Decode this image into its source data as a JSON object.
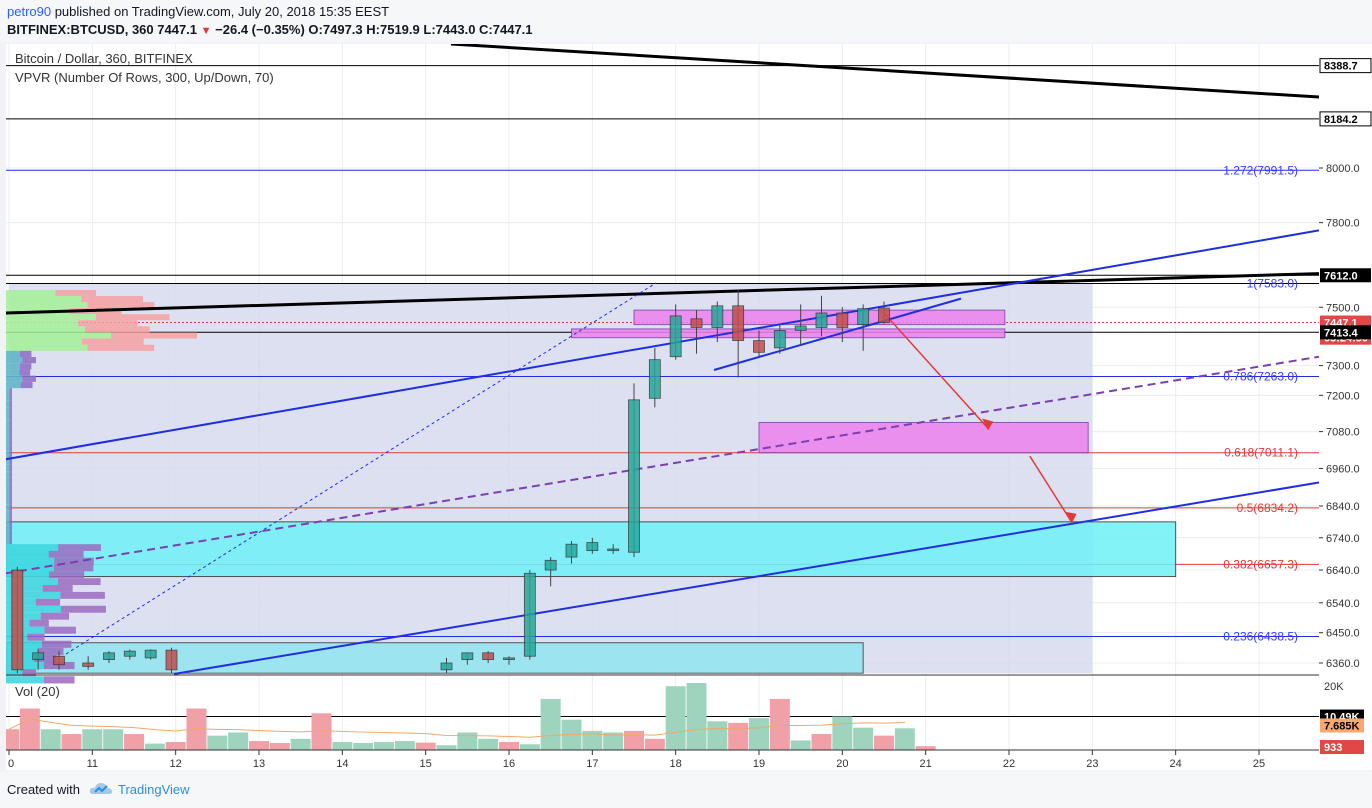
{
  "header": {
    "publisher_user": "petro90",
    "publisher_rest": " published on TradingView.com, July 20, 2018 15:35 EEST",
    "symbol": "BITFINEX:BTCUSD, 360",
    "last": "7447.1",
    "change": "−26.4 (−0.35%)",
    "open_label": "O:",
    "open": "7497.3",
    "high_label": "H:",
    "high": "7519.9",
    "low_label": "L:",
    "low": "7443.0",
    "close_label": "C:",
    "close": "7447.1"
  },
  "legend": {
    "title": "Bitcoin / Dollar, 360, BITFINEX",
    "indicator": "VPVR (Number Of Rows, 300, Up/Down, 70)",
    "vol_label": "Vol (20)"
  },
  "footer": {
    "created_with": "Created with",
    "brand": "TradingView"
  },
  "colors": {
    "up": "#26a69a",
    "down": "#c0504d",
    "up_vol": "#9ed4bd",
    "down_vol": "#f0a0a6",
    "fib_text": "#3a3aff",
    "fib_red": "#e03a3a",
    "magenta_box": "#ee82ee",
    "cyan_box": "#6ff1f7",
    "trend_blue": "#1f2ee0",
    "trend_purple": "#7b3fb0"
  },
  "chart_data": {
    "type": "candlestick",
    "x_axis": {
      "ticks": [
        "0",
        "11",
        "12",
        "13",
        "14",
        "15",
        "16",
        "17",
        "18",
        "19",
        "20",
        "21",
        "22",
        "23",
        "24",
        "25"
      ]
    },
    "y_axis": {
      "scale": "log",
      "range": [
        6330,
        8500
      ],
      "ticks": [
        "8000.0",
        "7800.0",
        "7500.0",
        "7300.0",
        "7200.0",
        "7080.0",
        "6960.0",
        "6840.0",
        "6740.0",
        "6640.0",
        "6540.0",
        "6450.0",
        "6360.0"
      ],
      "price_labels": [
        {
          "text": "8388.7",
          "value": 8388.7,
          "style": "outline"
        },
        {
          "text": "8184.2",
          "value": 8184.2,
          "style": "outline"
        },
        {
          "text": "7612.0",
          "value": 7612.0,
          "style": "black"
        },
        {
          "text": "7447.1",
          "value": 7447.1,
          "style": "red"
        },
        {
          "text": "05:24:50",
          "value": 7395,
          "style": "red"
        },
        {
          "text": "7413.4",
          "value": 7413.4,
          "style": "black"
        }
      ]
    },
    "fib_levels": [
      {
        "label": "1.272(7991.5)",
        "value": 7991.5,
        "line": "blue"
      },
      {
        "label": "1(7583.0)",
        "value": 7583.0,
        "line": "black"
      },
      {
        "label": "0.786(7263.0)",
        "value": 7263.0,
        "line": "blue"
      },
      {
        "label": "0.618(7011.1)",
        "value": 7011.1,
        "line": "red"
      },
      {
        "label": "0.5(6834.2)",
        "value": 6834.2,
        "line": "red"
      },
      {
        "label": "0.382(6657.3)",
        "value": 6657.3,
        "line": "red"
      },
      {
        "label": "0.236(6438.5)",
        "value": 6438.5,
        "line": "blue"
      }
    ],
    "candles": [
      {
        "t": 10.1,
        "o": 6640,
        "h": 6650,
        "l": 6330,
        "c": 6340
      },
      {
        "t": 10.35,
        "o": 6370,
        "h": 6400,
        "l": 6340,
        "c": 6390
      },
      {
        "t": 10.6,
        "o": 6380,
        "h": 6395,
        "l": 6340,
        "c": 6355
      },
      {
        "t": 10.95,
        "o": 6360,
        "h": 6380,
        "l": 6340,
        "c": 6350
      },
      {
        "t": 11.2,
        "o": 6370,
        "h": 6395,
        "l": 6360,
        "c": 6390
      },
      {
        "t": 11.45,
        "o": 6380,
        "h": 6400,
        "l": 6370,
        "c": 6395
      },
      {
        "t": 11.7,
        "o": 6375,
        "h": 6400,
        "l": 6370,
        "c": 6398
      },
      {
        "t": 11.95,
        "o": 6398,
        "h": 6405,
        "l": 6330,
        "c": 6340
      },
      {
        "t": 15.25,
        "o": 6340,
        "h": 6375,
        "l": 6330,
        "c": 6360
      },
      {
        "t": 15.5,
        "o": 6370,
        "h": 6390,
        "l": 6355,
        "c": 6390
      },
      {
        "t": 15.75,
        "o": 6390,
        "h": 6395,
        "l": 6360,
        "c": 6370
      },
      {
        "t": 16.0,
        "o": 6370,
        "h": 6380,
        "l": 6355,
        "c": 6375
      },
      {
        "t": 16.25,
        "o": 6380,
        "h": 6640,
        "l": 6370,
        "c": 6630
      },
      {
        "t": 16.5,
        "o": 6640,
        "h": 6680,
        "l": 6590,
        "c": 6670
      },
      {
        "t": 16.75,
        "o": 6680,
        "h": 6730,
        "l": 6660,
        "c": 6720
      },
      {
        "t": 17.0,
        "o": 6700,
        "h": 6740,
        "l": 6690,
        "c": 6725
      },
      {
        "t": 17.25,
        "o": 6700,
        "h": 6720,
        "l": 6690,
        "c": 6705
      },
      {
        "t": 17.5,
        "o": 6695,
        "h": 7240,
        "l": 6680,
        "c": 7185
      },
      {
        "t": 17.75,
        "o": 7190,
        "h": 7360,
        "l": 7160,
        "c": 7320
      },
      {
        "t": 18.0,
        "o": 7330,
        "h": 7510,
        "l": 7320,
        "c": 7470
      },
      {
        "t": 18.25,
        "o": 7460,
        "h": 7490,
        "l": 7340,
        "c": 7430
      },
      {
        "t": 18.5,
        "o": 7430,
        "h": 7520,
        "l": 7380,
        "c": 7505
      },
      {
        "t": 18.75,
        "o": 7505,
        "h": 7560,
        "l": 7260,
        "c": 7385
      },
      {
        "t": 19.0,
        "o": 7385,
        "h": 7420,
        "l": 7330,
        "c": 7345
      },
      {
        "t": 19.25,
        "o": 7360,
        "h": 7440,
        "l": 7340,
        "c": 7420
      },
      {
        "t": 19.5,
        "o": 7420,
        "h": 7510,
        "l": 7370,
        "c": 7435
      },
      {
        "t": 19.75,
        "o": 7430,
        "h": 7540,
        "l": 7400,
        "c": 7480
      },
      {
        "t": 20.0,
        "o": 7480,
        "h": 7500,
        "l": 7380,
        "c": 7430
      },
      {
        "t": 20.25,
        "o": 7440,
        "h": 7510,
        "l": 7350,
        "c": 7495
      },
      {
        "t": 20.5,
        "o": 7497.3,
        "h": 7519.9,
        "l": 7443.0,
        "c": 7447.1
      }
    ],
    "volume": {
      "y_ticks": [
        "20K",
        "10.49K",
        "7.685K",
        "933"
      ],
      "bars": [
        {
          "t": 10.0,
          "v": 6.5,
          "dir": "down"
        },
        {
          "t": 10.25,
          "v": 13,
          "dir": "down"
        },
        {
          "t": 10.5,
          "v": 6.5,
          "dir": "up"
        },
        {
          "t": 10.75,
          "v": 5,
          "dir": "down"
        },
        {
          "t": 11.0,
          "v": 6.5,
          "dir": "up"
        },
        {
          "t": 11.25,
          "v": 6.5,
          "dir": "up"
        },
        {
          "t": 11.5,
          "v": 5,
          "dir": "down"
        },
        {
          "t": 11.75,
          "v": 2,
          "dir": "up"
        },
        {
          "t": 12.0,
          "v": 2.5,
          "dir": "down"
        },
        {
          "t": 12.25,
          "v": 13,
          "dir": "down"
        },
        {
          "t": 12.5,
          "v": 4.5,
          "dir": "up"
        },
        {
          "t": 12.75,
          "v": 5.5,
          "dir": "up"
        },
        {
          "t": 13.0,
          "v": 2.8,
          "dir": "down"
        },
        {
          "t": 13.25,
          "v": 2.2,
          "dir": "down"
        },
        {
          "t": 13.5,
          "v": 3.5,
          "dir": "up"
        },
        {
          "t": 13.75,
          "v": 11.5,
          "dir": "down"
        },
        {
          "t": 14.0,
          "v": 2.5,
          "dir": "up"
        },
        {
          "t": 14.25,
          "v": 2.2,
          "dir": "up"
        },
        {
          "t": 14.5,
          "v": 2.5,
          "dir": "up"
        },
        {
          "t": 14.75,
          "v": 2.8,
          "dir": "up"
        },
        {
          "t": 15.0,
          "v": 2.3,
          "dir": "down"
        },
        {
          "t": 15.25,
          "v": 1.5,
          "dir": "up"
        },
        {
          "t": 15.5,
          "v": 5.5,
          "dir": "up"
        },
        {
          "t": 15.75,
          "v": 3.5,
          "dir": "up"
        },
        {
          "t": 16.0,
          "v": 2.5,
          "dir": "down"
        },
        {
          "t": 16.25,
          "v": 1.8,
          "dir": "up"
        },
        {
          "t": 16.5,
          "v": 16,
          "dir": "up"
        },
        {
          "t": 16.75,
          "v": 9.5,
          "dir": "up"
        },
        {
          "t": 17.0,
          "v": 6,
          "dir": "up"
        },
        {
          "t": 17.25,
          "v": 5.5,
          "dir": "up"
        },
        {
          "t": 17.5,
          "v": 6,
          "dir": "down"
        },
        {
          "t": 17.75,
          "v": 3.5,
          "dir": "down"
        },
        {
          "t": 18.0,
          "v": 20,
          "dir": "up"
        },
        {
          "t": 18.25,
          "v": 21,
          "dir": "up"
        },
        {
          "t": 18.5,
          "v": 9,
          "dir": "up"
        },
        {
          "t": 18.75,
          "v": 8.5,
          "dir": "down"
        },
        {
          "t": 19.0,
          "v": 10,
          "dir": "up"
        },
        {
          "t": 19.25,
          "v": 16,
          "dir": "down"
        },
        {
          "t": 19.5,
          "v": 3,
          "dir": "up"
        },
        {
          "t": 19.75,
          "v": 5,
          "dir": "down"
        },
        {
          "t": 20.0,
          "v": 10.5,
          "dir": "up"
        },
        {
          "t": 20.25,
          "v": 7,
          "dir": "up"
        },
        {
          "t": 20.5,
          "v": 4.5,
          "dir": "down"
        },
        {
          "t": 20.75,
          "v": 6.8,
          "dir": "up"
        },
        {
          "t": 21.0,
          "v": 1.2,
          "dir": "down"
        }
      ]
    }
  }
}
